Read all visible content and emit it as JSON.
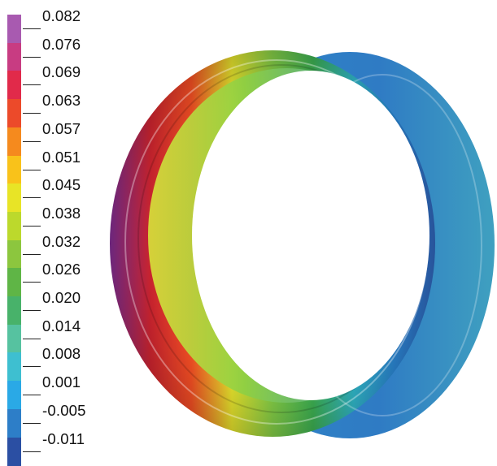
{
  "colorbar": {
    "ticks": [
      {
        "label": "0.082",
        "color": "#a85ab0"
      },
      {
        "label": "0.076",
        "color": "#c83c82"
      },
      {
        "label": "0.069",
        "color": "#e12a4a"
      },
      {
        "label": "0.063",
        "color": "#ec4a2a"
      },
      {
        "label": "0.057",
        "color": "#f58a1e"
      },
      {
        "label": "0.051",
        "color": "#f9c21a"
      },
      {
        "label": "0.045",
        "color": "#e8e426"
      },
      {
        "label": "0.038",
        "color": "#bcd92c"
      },
      {
        "label": "0.032",
        "color": "#8cc63e"
      },
      {
        "label": "0.026",
        "color": "#5fb546"
      },
      {
        "label": "0.020",
        "color": "#48b26a"
      },
      {
        "label": "0.014",
        "color": "#56c2a0"
      },
      {
        "label": "0.008",
        "color": "#3ebfd0"
      },
      {
        "label": "0.001",
        "color": "#2aa9e6"
      },
      {
        "label": "-0.005",
        "color": "#2d7ec8"
      },
      {
        "label": "-0.011",
        "color": "#2b4fa3"
      }
    ]
  },
  "ring": {
    "gradient_stops": [
      "#7b2c8e",
      "#c8232e",
      "#e94b22",
      "#d9d62a",
      "#7cc142",
      "#3aa84e",
      "#2fb3c5",
      "#2a83cf",
      "#2d5fb0"
    ]
  }
}
